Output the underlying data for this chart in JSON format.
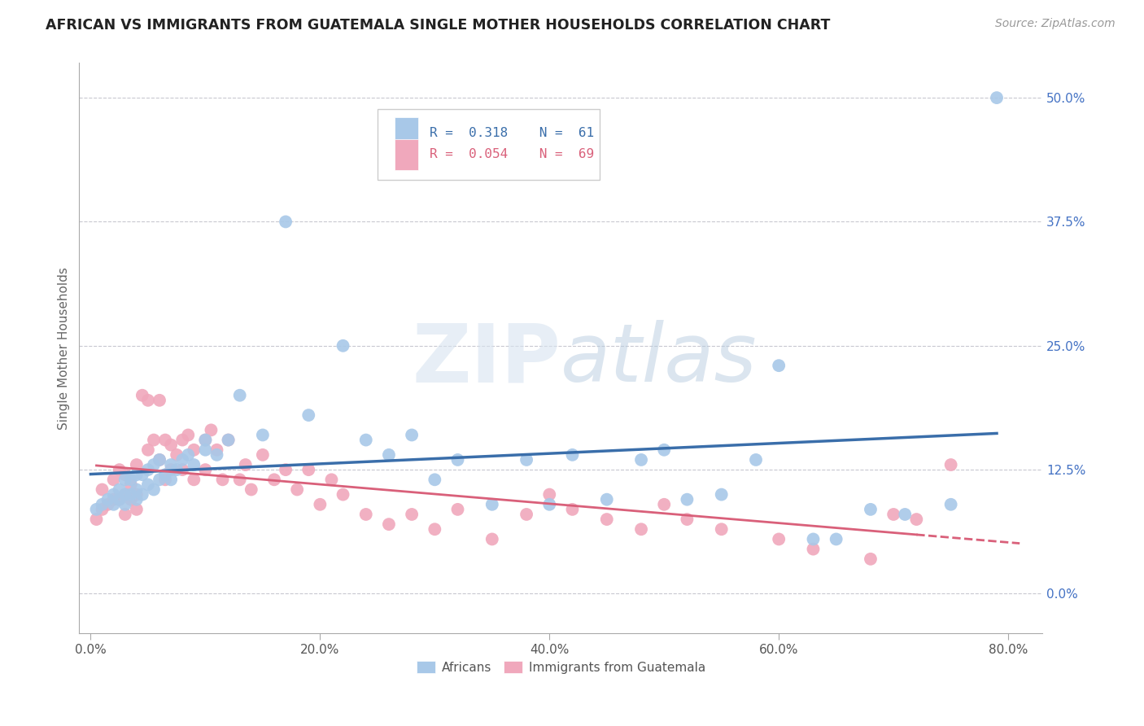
{
  "title": "AFRICAN VS IMMIGRANTS FROM GUATEMALA SINGLE MOTHER HOUSEHOLDS CORRELATION CHART",
  "source": "Source: ZipAtlas.com",
  "ylabel": "Single Mother Households",
  "xlabel_ticks": [
    "0.0%",
    "20.0%",
    "40.0%",
    "60.0%",
    "80.0%"
  ],
  "xlabel_vals": [
    0.0,
    0.2,
    0.4,
    0.6,
    0.8
  ],
  "ylabel_ticks": [
    "0.0%",
    "12.5%",
    "25.0%",
    "37.5%",
    "50.0%"
  ],
  "ylabel_vals": [
    0.0,
    0.125,
    0.25,
    0.375,
    0.5
  ],
  "xlim": [
    -0.01,
    0.83
  ],
  "ylim": [
    -0.04,
    0.535
  ],
  "africans_R": 0.318,
  "africans_N": 61,
  "guatemala_R": 0.054,
  "guatemala_N": 69,
  "africans_color": "#a8c8e8",
  "africans_line_color": "#3a6eaa",
  "guatemala_color": "#f0a8bc",
  "guatemala_line_color": "#d9607a",
  "africans_x": [
    0.005,
    0.01,
    0.015,
    0.02,
    0.02,
    0.025,
    0.025,
    0.03,
    0.03,
    0.03,
    0.035,
    0.035,
    0.04,
    0.04,
    0.04,
    0.045,
    0.045,
    0.05,
    0.05,
    0.055,
    0.055,
    0.06,
    0.06,
    0.065,
    0.07,
    0.07,
    0.075,
    0.08,
    0.085,
    0.09,
    0.1,
    0.1,
    0.11,
    0.12,
    0.13,
    0.15,
    0.17,
    0.19,
    0.22,
    0.24,
    0.26,
    0.28,
    0.3,
    0.32,
    0.35,
    0.38,
    0.4,
    0.42,
    0.45,
    0.48,
    0.5,
    0.52,
    0.55,
    0.58,
    0.6,
    0.63,
    0.65,
    0.68,
    0.71,
    0.75,
    0.79
  ],
  "africans_y": [
    0.085,
    0.09,
    0.095,
    0.1,
    0.09,
    0.095,
    0.105,
    0.09,
    0.1,
    0.115,
    0.1,
    0.115,
    0.095,
    0.105,
    0.12,
    0.1,
    0.12,
    0.11,
    0.125,
    0.105,
    0.13,
    0.115,
    0.135,
    0.12,
    0.115,
    0.13,
    0.125,
    0.135,
    0.14,
    0.13,
    0.145,
    0.155,
    0.14,
    0.155,
    0.2,
    0.16,
    0.375,
    0.18,
    0.25,
    0.155,
    0.14,
    0.16,
    0.115,
    0.135,
    0.09,
    0.135,
    0.09,
    0.14,
    0.095,
    0.135,
    0.145,
    0.095,
    0.1,
    0.135,
    0.23,
    0.055,
    0.055,
    0.085,
    0.08,
    0.09,
    0.5
  ],
  "guatemala_x": [
    0.005,
    0.01,
    0.01,
    0.015,
    0.02,
    0.02,
    0.025,
    0.025,
    0.03,
    0.03,
    0.03,
    0.035,
    0.035,
    0.04,
    0.04,
    0.04,
    0.045,
    0.05,
    0.05,
    0.055,
    0.06,
    0.06,
    0.065,
    0.065,
    0.07,
    0.07,
    0.075,
    0.08,
    0.08,
    0.085,
    0.09,
    0.09,
    0.1,
    0.1,
    0.105,
    0.11,
    0.115,
    0.12,
    0.13,
    0.135,
    0.14,
    0.15,
    0.16,
    0.17,
    0.18,
    0.19,
    0.2,
    0.21,
    0.22,
    0.24,
    0.26,
    0.28,
    0.3,
    0.32,
    0.35,
    0.38,
    0.4,
    0.42,
    0.45,
    0.48,
    0.5,
    0.52,
    0.55,
    0.6,
    0.63,
    0.68,
    0.7,
    0.72,
    0.75
  ],
  "guatemala_y": [
    0.075,
    0.085,
    0.105,
    0.09,
    0.095,
    0.115,
    0.095,
    0.125,
    0.08,
    0.1,
    0.12,
    0.095,
    0.11,
    0.085,
    0.1,
    0.13,
    0.2,
    0.195,
    0.145,
    0.155,
    0.195,
    0.135,
    0.155,
    0.115,
    0.15,
    0.125,
    0.14,
    0.155,
    0.125,
    0.16,
    0.145,
    0.115,
    0.155,
    0.125,
    0.165,
    0.145,
    0.115,
    0.155,
    0.115,
    0.13,
    0.105,
    0.14,
    0.115,
    0.125,
    0.105,
    0.125,
    0.09,
    0.115,
    0.1,
    0.08,
    0.07,
    0.08,
    0.065,
    0.085,
    0.055,
    0.08,
    0.1,
    0.085,
    0.075,
    0.065,
    0.09,
    0.075,
    0.065,
    0.055,
    0.045,
    0.035,
    0.08,
    0.075,
    0.13
  ],
  "watermark_text": "ZIPatlas",
  "background_color": "#ffffff",
  "grid_color": "#c8c8d0"
}
